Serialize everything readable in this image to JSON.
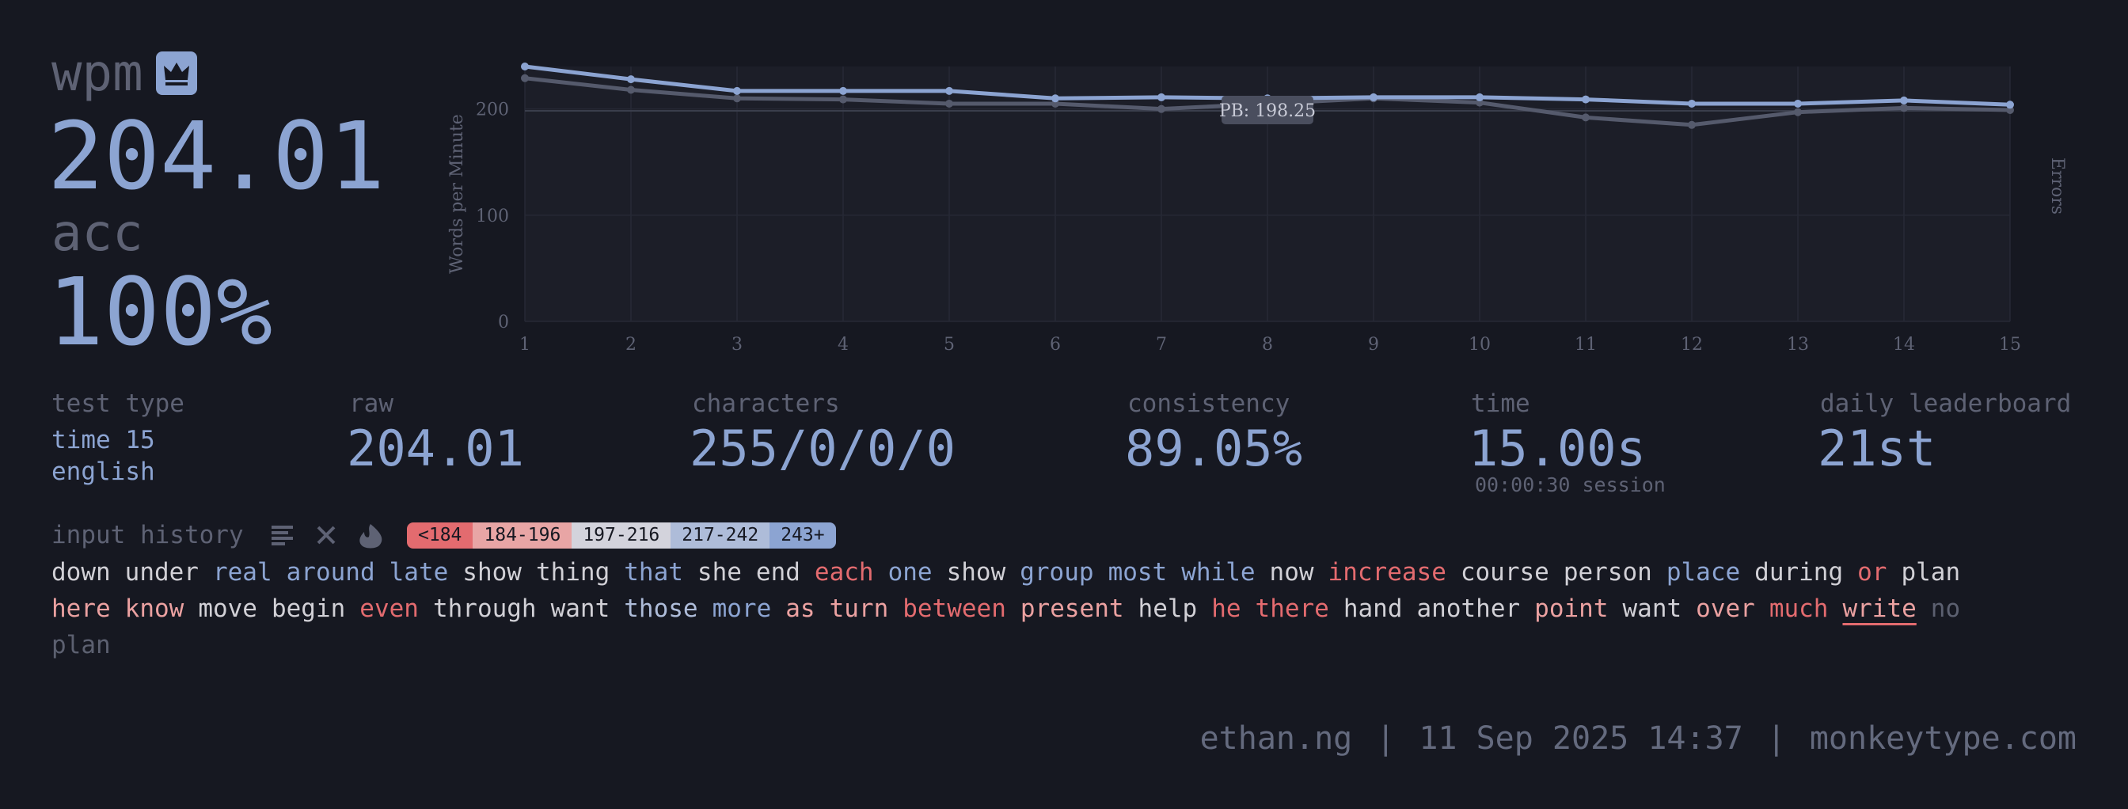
{
  "result": {
    "wpm_label": "wpm",
    "wpm": "204.01",
    "acc_label": "acc",
    "acc": "100%"
  },
  "chart_data": {
    "type": "line",
    "y_axis_label": "Words per Minute",
    "y2_axis_label": "Errors",
    "x": [
      1,
      2,
      3,
      4,
      5,
      6,
      7,
      8,
      9,
      10,
      11,
      12,
      13,
      14,
      15
    ],
    "xlim": [
      1,
      15
    ],
    "xticks": [
      1,
      2,
      3,
      4,
      5,
      6,
      7,
      8,
      9,
      10,
      11,
      12,
      13,
      14,
      15
    ],
    "ylim": [
      0,
      240
    ],
    "yticks": [
      0,
      100,
      200
    ],
    "grid": true,
    "annotation": {
      "value": 198.25,
      "label": "PB: 198.25"
    },
    "series": [
      {
        "color": "#555a6c",
        "values": [
          229,
          218,
          210,
          209,
          205,
          205,
          200,
          205,
          210,
          206,
          192,
          185,
          197,
          201,
          199
        ]
      },
      {
        "color": "#8ca4d2",
        "values": [
          240,
          228,
          217,
          217,
          217,
          210,
          211,
          210,
          211,
          211,
          209,
          205,
          205,
          208,
          204.01
        ]
      }
    ]
  },
  "stats": {
    "test_type": {
      "label": "test type",
      "lines": [
        "time 15",
        "english"
      ]
    },
    "raw": {
      "label": "raw",
      "value": "204.01"
    },
    "characters": {
      "label": "characters",
      "value": "255/0/0/0"
    },
    "consistency": {
      "label": "consistency",
      "value": "89.05%"
    },
    "time": {
      "label": "time",
      "value": "15.00s",
      "note": "00:00:30 session"
    },
    "leaderboard": {
      "label": "daily leaderboard",
      "value": "21st"
    }
  },
  "input_history": {
    "label": "input history",
    "legend": [
      {
        "label": "<184",
        "color": "#e36b6f"
      },
      {
        "label": "184-196",
        "color": "#e8a5a5"
      },
      {
        "label": "197-216",
        "color": "#d3d3dc"
      },
      {
        "label": "217-242",
        "color": "#aebcd9"
      },
      {
        "label": "243+",
        "color": "#8ca4d2"
      }
    ],
    "lines": [
      [
        {
          "text": "down",
          "color": "#d1d0d6"
        },
        {
          "text": "under",
          "color": "#d1d0d6"
        },
        {
          "text": "real",
          "color": "#8ca4d2"
        },
        {
          "text": "around",
          "color": "#8ca4d2"
        },
        {
          "text": "late",
          "color": "#8ca4d2"
        },
        {
          "text": "show",
          "color": "#d1d0d6"
        },
        {
          "text": "thing",
          "color": "#d1d0d6"
        },
        {
          "text": "that",
          "color": "#8ca4d2"
        },
        {
          "text": "she",
          "color": "#d1d0d6"
        },
        {
          "text": "end",
          "color": "#d1d0d6"
        },
        {
          "text": "each",
          "color": "#e36b6f"
        },
        {
          "text": "one",
          "color": "#8ca4d2"
        },
        {
          "text": "show",
          "color": "#d1d0d6"
        },
        {
          "text": "group",
          "color": "#8ca4d2"
        },
        {
          "text": "most",
          "color": "#8ca4d2"
        },
        {
          "text": "while",
          "color": "#8ca4d2"
        },
        {
          "text": "now",
          "color": "#d1d0d6"
        },
        {
          "text": "increase",
          "color": "#e36b6f"
        },
        {
          "text": "course",
          "color": "#d1d0d6"
        },
        {
          "text": "person",
          "color": "#d1d0d6"
        },
        {
          "text": "place",
          "color": "#8ca4d2"
        },
        {
          "text": "during",
          "color": "#d1d0d6"
        },
        {
          "text": "or",
          "color": "#e36b6f"
        },
        {
          "text": "plan",
          "color": "#d1d0d6"
        }
      ],
      [
        {
          "text": "here",
          "color": "#eba1a1"
        },
        {
          "text": "know",
          "color": "#eba1a1"
        },
        {
          "text": "move",
          "color": "#d1d0d6"
        },
        {
          "text": "begin",
          "color": "#d1d0d6"
        },
        {
          "text": "even",
          "color": "#e36b6f"
        },
        {
          "text": "through",
          "color": "#d1d0d6"
        },
        {
          "text": "want",
          "color": "#d1d0d6"
        },
        {
          "text": "those",
          "color": "#aebcd9"
        },
        {
          "text": "more",
          "color": "#8ca4d2"
        },
        {
          "text": "as",
          "color": "#eba1a1"
        },
        {
          "text": "turn",
          "color": "#eba1a1"
        },
        {
          "text": "between",
          "color": "#e36b6f"
        },
        {
          "text": "present",
          "color": "#eba1a1"
        },
        {
          "text": "help",
          "color": "#d1d0d6"
        },
        {
          "text": "he",
          "color": "#e36b6f"
        },
        {
          "text": "there",
          "color": "#e36b6f"
        },
        {
          "text": "hand",
          "color": "#d1d0d6"
        },
        {
          "text": "another",
          "color": "#d1d0d6"
        },
        {
          "text": "point",
          "color": "#eba1a1"
        },
        {
          "text": "want",
          "color": "#d1d0d6"
        },
        {
          "text": "over",
          "color": "#eba1a1"
        },
        {
          "text": "much",
          "color": "#e36b6f"
        },
        {
          "text": "write",
          "color": "#eba1a1",
          "underline": true
        },
        {
          "text": "no",
          "color": "#5c6070"
        }
      ],
      [
        {
          "text": "plan",
          "color": "#5c6070"
        }
      ]
    ]
  },
  "footer": {
    "user": "ethan.ng",
    "separator": "|",
    "date": "11 Sep 2025 14:37",
    "site": "monkeytype.com"
  }
}
